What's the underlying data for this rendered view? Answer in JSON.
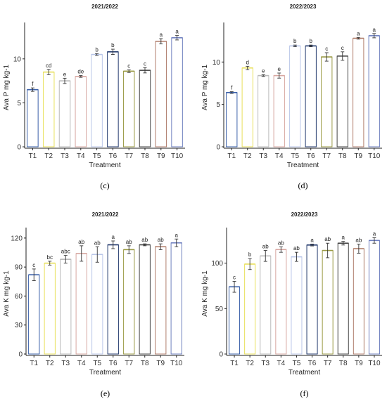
{
  "colors": {
    "T1": "#3a5fa8",
    "T2": "#e8e05a",
    "T3": "#b9b9b9",
    "T4": "#d7a7a1",
    "T5": "#b9c6e8",
    "T6": "#233a6d",
    "T7": "#9a9a45",
    "T8": "#444444",
    "T9": "#b07e6c",
    "T10": "#6e7fbf"
  },
  "chart_data": [
    {
      "type": "bar",
      "panel_label": "(c)",
      "title": "2021/2022",
      "xlabel": "Treatment",
      "ylabel": "Ava P  mg kg-1",
      "ylim": [
        0,
        13.5
      ],
      "yticks": [
        0,
        5,
        10
      ],
      "categories": [
        "T1",
        "T2",
        "T3",
        "T4",
        "T5",
        "T6",
        "T7",
        "T8",
        "T9",
        "T10"
      ],
      "values": [
        6.5,
        8.5,
        7.5,
        8.0,
        10.5,
        10.8,
        8.6,
        8.7,
        12.0,
        12.4
      ],
      "errors": [
        0.2,
        0.3,
        0.3,
        0.1,
        0.1,
        0.3,
        0.15,
        0.3,
        0.3,
        0.25
      ],
      "significance": [
        "f",
        "cd",
        "e",
        "de",
        "b",
        "b",
        "c",
        "c",
        "a",
        "a"
      ]
    },
    {
      "type": "bar",
      "panel_label": "(d)",
      "title": "2022/2023",
      "xlabel": "Treatment",
      "ylabel": "Ava P  mg kg-1",
      "ylim": [
        0,
        14
      ],
      "yticks": [
        0,
        5,
        10
      ],
      "categories": [
        "T1",
        "T2",
        "T3",
        "T4",
        "T5",
        "T6",
        "T7",
        "T8",
        "T9",
        "T10"
      ],
      "values": [
        6.4,
        9.3,
        8.4,
        8.4,
        11.9,
        11.9,
        10.6,
        10.7,
        12.8,
        13.1
      ],
      "errors": [
        0.1,
        0.2,
        0.1,
        0.3,
        0.1,
        0.1,
        0.5,
        0.5,
        0.1,
        0.25
      ],
      "significance": [
        "f",
        "d",
        "e",
        "e",
        "b",
        "b",
        "c",
        "c",
        "a",
        "a"
      ]
    },
    {
      "type": "bar",
      "panel_label": "(e)",
      "title": "2021/2022",
      "xlabel": "Treatment",
      "ylabel": "Ava K  mg kg-1",
      "ylim": [
        0,
        125
      ],
      "yticks": [
        0,
        30,
        60,
        90,
        120
      ],
      "categories": [
        "T1",
        "T2",
        "T3",
        "T4",
        "T5",
        "T6",
        "T7",
        "T8",
        "T9",
        "T10"
      ],
      "values": [
        82,
        94,
        98,
        104,
        103,
        113,
        108,
        113,
        111,
        115
      ],
      "errors": [
        6,
        2,
        4,
        8,
        8,
        4,
        4,
        1,
        3,
        4
      ],
      "significance": [
        "c",
        "bc",
        "abc",
        "ab",
        "ab",
        "a",
        "ab",
        "ab",
        "ab",
        "a"
      ]
    },
    {
      "type": "bar",
      "panel_label": "(f)",
      "title": "2022/2023",
      "xlabel": "Treatment",
      "ylabel": "Ava K  mg kg-1",
      "ylim": [
        0,
        133
      ],
      "yticks": [
        0,
        50,
        100
      ],
      "categories": [
        "T1",
        "T2",
        "T3",
        "T4",
        "T5",
        "T6",
        "T7",
        "T8",
        "T9",
        "T10"
      ],
      "values": [
        74,
        99,
        108,
        115,
        107,
        120,
        114,
        122,
        116,
        125
      ],
      "errors": [
        6,
        6,
        6,
        3,
        5,
        1,
        8,
        2,
        5,
        3
      ],
      "significance": [
        "c",
        "b",
        "ab",
        "ab",
        "ab",
        "a",
        "ab",
        "a",
        "ab",
        "a"
      ]
    }
  ]
}
